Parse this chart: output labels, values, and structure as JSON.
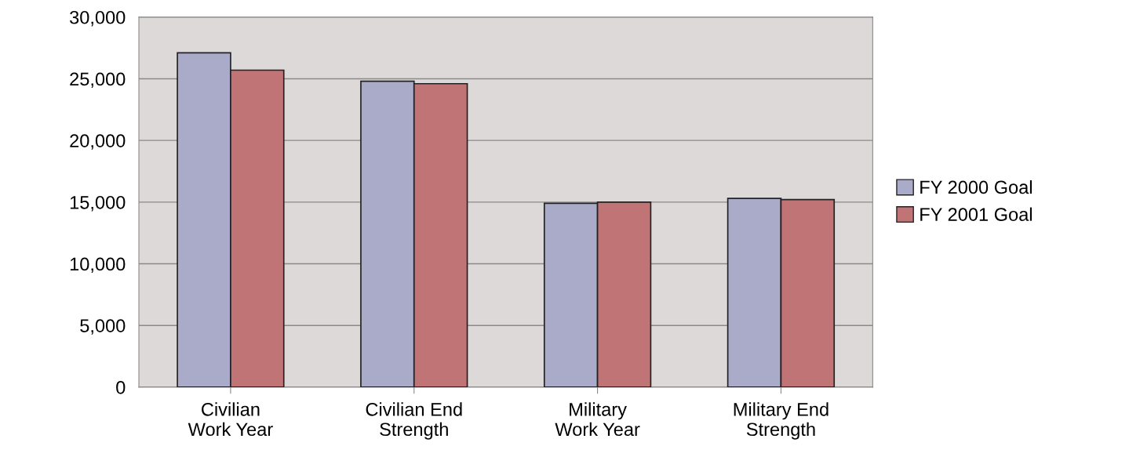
{
  "chart_data": {
    "type": "bar",
    "categories": [
      "Civilian\nWork Year",
      "Civilian End\nStrength",
      "Military\nWork Year",
      "Military End\nStrength"
    ],
    "series": [
      {
        "name": "FY 2000 Goal",
        "color": "#a9abc9",
        "values": [
          27100,
          24800,
          14900,
          15300
        ]
      },
      {
        "name": "FY 2001 Goal",
        "color": "#c07476",
        "values": [
          25700,
          24600,
          15000,
          15200
        ]
      }
    ],
    "ylim": [
      0,
      30000
    ],
    "yticks": [
      {
        "value": 0,
        "label": "0"
      },
      {
        "value": 5000,
        "label": "5,000"
      },
      {
        "value": 10000,
        "label": "10,000"
      },
      {
        "value": 15000,
        "label": "15,000"
      },
      {
        "value": 20000,
        "label": "20,000"
      },
      {
        "value": 25000,
        "label": "25,000"
      },
      {
        "value": 30000,
        "label": "30,000"
      }
    ],
    "grid": "y",
    "legend": "right"
  }
}
